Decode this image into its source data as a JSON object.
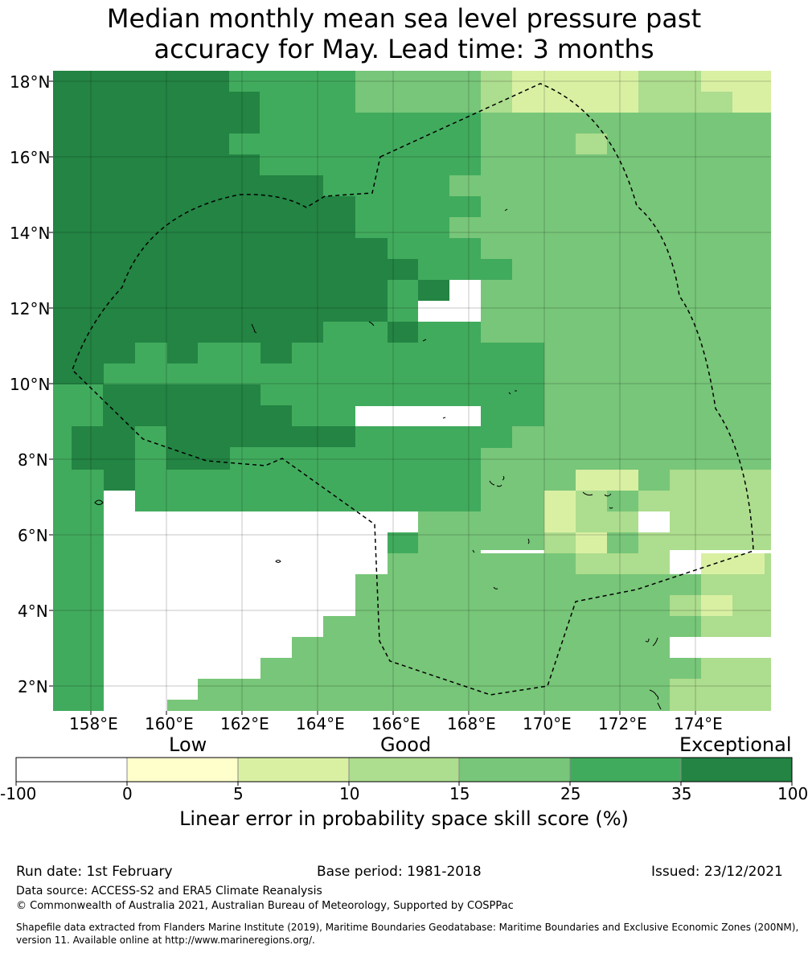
{
  "title": {
    "line1": "Median monthly mean sea level pressure past",
    "line2": "accuracy for May. Lead time: 3 months"
  },
  "map": {
    "lat_labels": [
      "18°N",
      "16°N",
      "14°N",
      "12°N",
      "10°N",
      "8°N",
      "6°N",
      "4°N",
      "2°N"
    ],
    "lon_labels": [
      "158°E",
      "160°E",
      "162°E",
      "164°E",
      "166°E",
      "168°E",
      "170°E",
      "172°E",
      "174°E"
    ],
    "lon_range": [
      157.0,
      176.0
    ],
    "lat_range": [
      1.4,
      18.3
    ],
    "cell_size_deg": 0.833,
    "eez_boundary": "dashed",
    "grid": true,
    "colors": {
      "c0": "#ffffcc",
      "c5": "#d9f0a3",
      "c10": "#addd8e",
      "c15": "#78c679",
      "c25": "#41ab5d",
      "c35": "#238443"
    }
  },
  "colorbar": {
    "category_labels": [
      "Low",
      "Good",
      "Exceptional"
    ],
    "tick_labels": [
      "-100",
      "0",
      "5",
      "10",
      "15",
      "25",
      "35",
      "100"
    ],
    "colors": [
      "#ffffff",
      "#ffffcc",
      "#d9f0a3",
      "#addd8e",
      "#78c679",
      "#41ab5d",
      "#238443"
    ],
    "axis_label": "Linear error in probability space skill score (%)"
  },
  "footer": {
    "run_date": "Run date: 1st February",
    "base_period": "Base period: 1981-2018",
    "issued": "Issued: 23/12/2021",
    "data_source": "Data source: ACCESS-S2 and ERA5 Climate Reanalysis",
    "copyright": "© Commonwealth of Australia 2021, Australian Bureau of Meteorology, Supported by COSPPac",
    "shapefile_line1": "Shapefile data extracted from Flanders Marine Institute (2019), Maritime Boundaries Geodatabase: Maritime Boundaries and Exclusive Economic Zones (200NM),",
    "shapefile_line2": "version 11. Available online at http://www.marineregions.org/."
  }
}
